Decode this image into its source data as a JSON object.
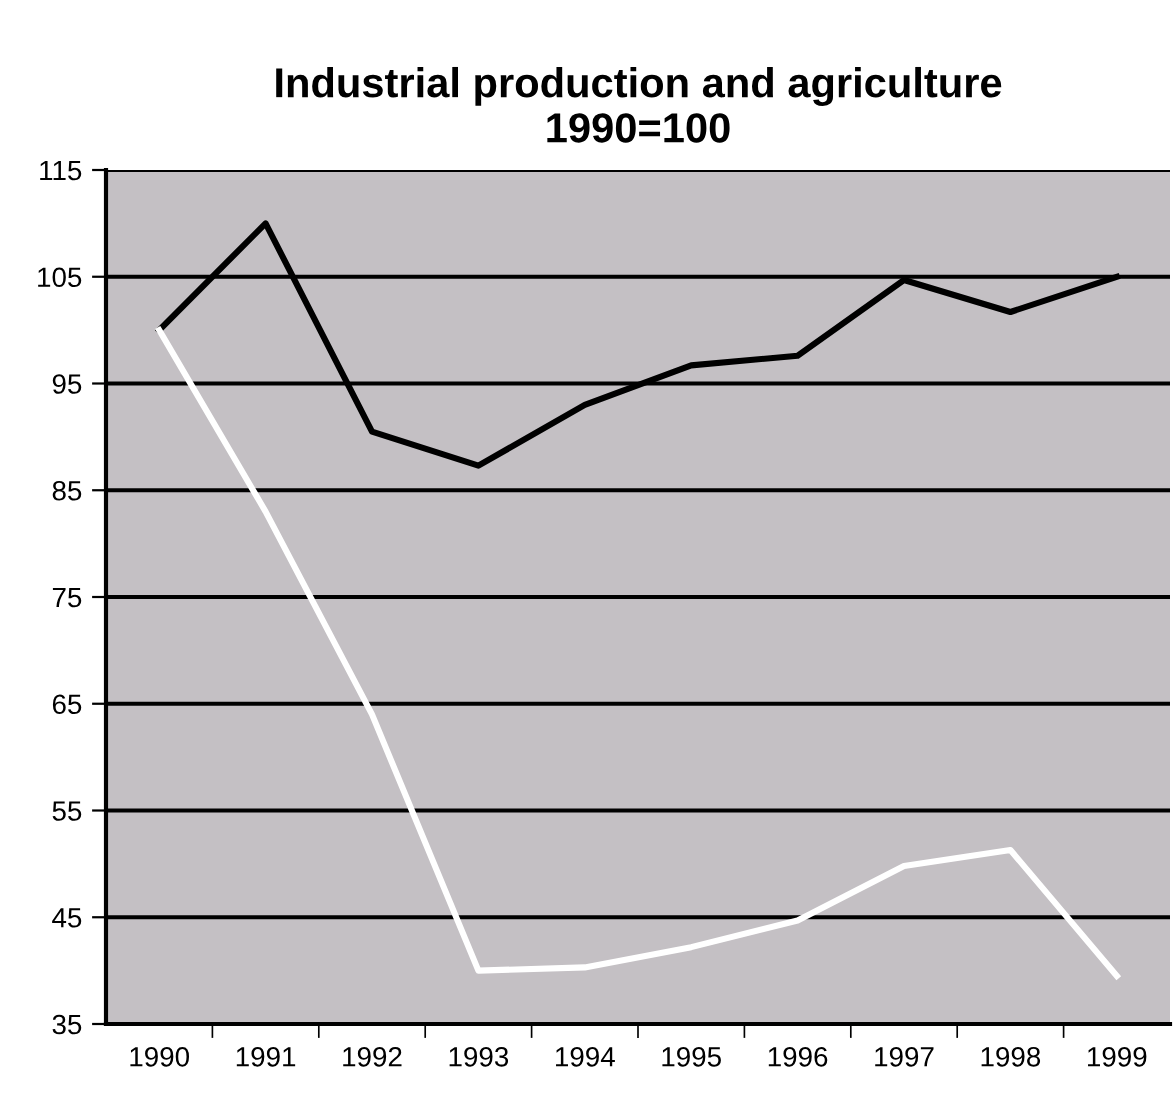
{
  "chart_data": {
    "type": "line",
    "title": "Industrial production and agriculture\n1990=100",
    "categories": [
      "1990",
      "1991",
      "1992",
      "1993",
      "1994",
      "1995",
      "1996",
      "1997",
      "1998",
      "1999"
    ],
    "series": [
      {
        "color": "#000000",
        "values": [
          100,
          110,
          90.5,
          87.3,
          93,
          96.7,
          97.6,
          104.7,
          101.7,
          105
        ]
      },
      {
        "color": "#ffffff",
        "values": [
          100,
          83,
          64,
          40,
          40.3,
          42.2,
          44.7,
          49.8,
          51.3,
          39.5
        ]
      }
    ],
    "ylim": [
      35,
      115
    ],
    "yticks": [
      35,
      45,
      55,
      65,
      75,
      85,
      95,
      105,
      115
    ],
    "grid": "y",
    "legend": false,
    "marker": "none",
    "line_style": "solid"
  }
}
